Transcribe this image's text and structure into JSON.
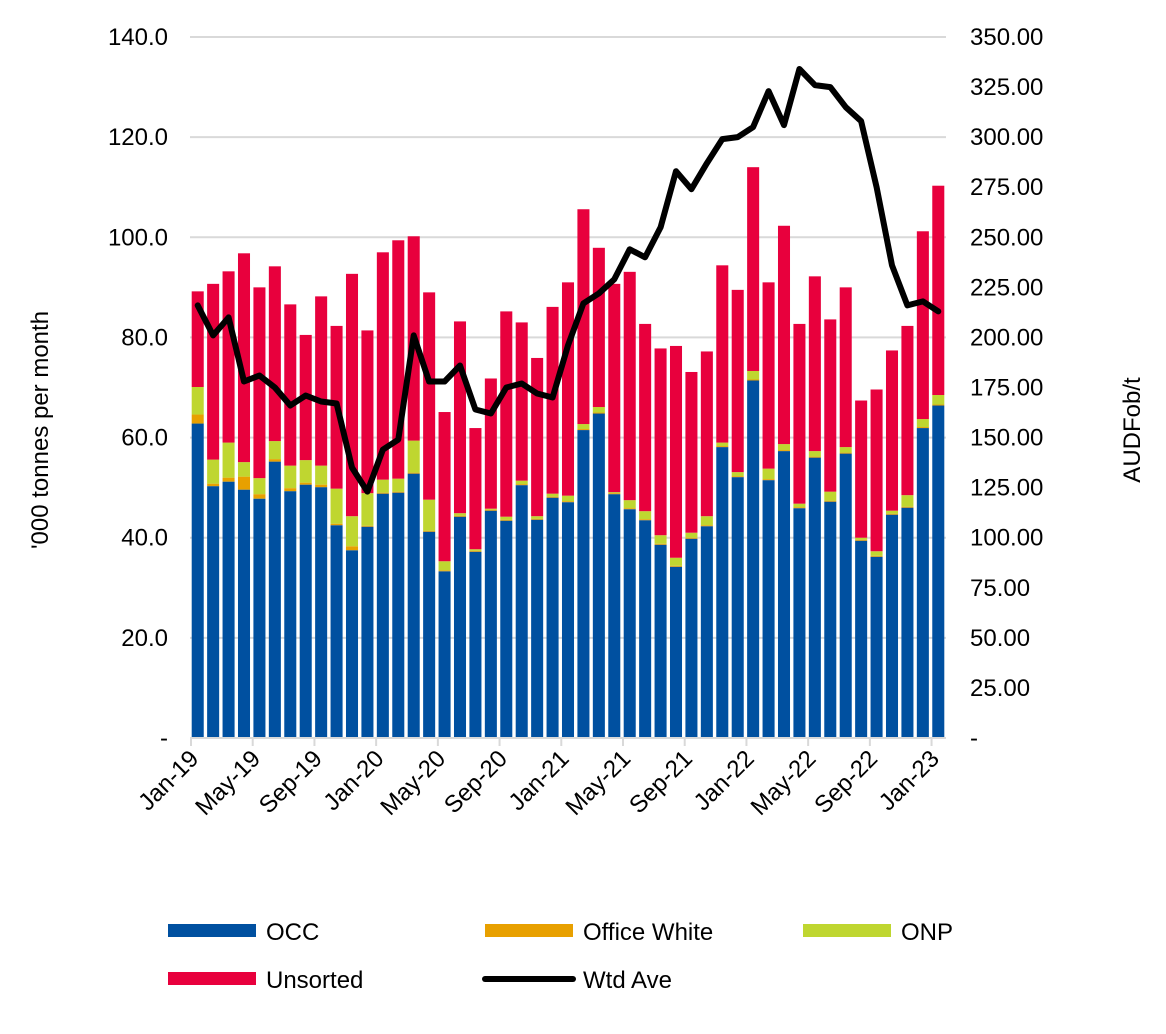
{
  "chart_data": {
    "type": "bar",
    "stacked": true,
    "categories": [
      "Jan-19",
      "Feb-19",
      "Mar-19",
      "Apr-19",
      "May-19",
      "Jun-19",
      "Jul-19",
      "Aug-19",
      "Sep-19",
      "Oct-19",
      "Nov-19",
      "Dec-19",
      "Jan-20",
      "Feb-20",
      "Mar-20",
      "Apr-20",
      "May-20",
      "Jun-20",
      "Jul-20",
      "Aug-20",
      "Sep-20",
      "Oct-20",
      "Nov-20",
      "Dec-20",
      "Jan-21",
      "Feb-21",
      "Mar-21",
      "Apr-21",
      "May-21",
      "Jun-21",
      "Jul-21",
      "Aug-21",
      "Sep-21",
      "Oct-21",
      "Nov-21",
      "Dec-21",
      "Jan-22",
      "Feb-22",
      "Mar-22",
      "Apr-22",
      "May-22",
      "Jun-22",
      "Jul-22",
      "Aug-22",
      "Sep-22",
      "Oct-22",
      "Nov-22",
      "Dec-22",
      "Jan-23"
    ],
    "x_tick_labels": [
      "Jan-19",
      "May-19",
      "Sep-19",
      "Jan-20",
      "May-20",
      "Sep-20",
      "Jan-21",
      "May-21",
      "Sep-21",
      "Jan-22",
      "May-22",
      "Sep-22",
      "Jan-23"
    ],
    "ylabel": "'000 tonnes per month",
    "y2label": "AUDFob/t",
    "ylim": [
      0,
      140
    ],
    "y2lim": [
      0,
      350
    ],
    "y_ticks": [
      "-",
      "20.0",
      "40.0",
      "60.0",
      "80.0",
      "100.0",
      "120.0",
      "140.0"
    ],
    "y2_ticks": [
      "-",
      "25.00",
      "50.00",
      "75.00",
      "100.00",
      "125.00",
      "150.00",
      "175.00",
      "200.00",
      "225.00",
      "250.00",
      "275.00",
      "300.00",
      "325.00",
      "350.00"
    ],
    "grid": "horizontal",
    "legend_position": "bottom",
    "series": [
      {
        "name": "OCC",
        "color": "#0050A0",
        "values": [
          62.8,
          50.3,
          51.2,
          49.6,
          47.8,
          55.2,
          49.3,
          50.6,
          50.1,
          42.5,
          37.5,
          42.2,
          48.8,
          49.0,
          52.8,
          41.2,
          33.3,
          44.2,
          37.2,
          45.4,
          43.4,
          50.5,
          43.6,
          48.0,
          47.1,
          61.5,
          64.8,
          48.7,
          45.7,
          43.5,
          38.6,
          34.2,
          39.8,
          42.3,
          58.1,
          52.1,
          71.4,
          51.5,
          57.3,
          45.9,
          56.0,
          47.2,
          56.8,
          39.4,
          36.2,
          44.6,
          46.0,
          61.9,
          66.4
        ]
      },
      {
        "name": "Office White",
        "color": "#E8A000",
        "values": [
          1.8,
          0.5,
          0.8,
          2.6,
          0.9,
          0.5,
          0.6,
          0.4,
          0.5,
          0.3,
          0.8,
          0.2,
          0.2,
          0.2,
          0.2,
          0.2,
          0.2,
          0.2,
          0.2,
          0.2,
          0.2,
          0.2,
          0.2,
          0.2,
          0.2,
          0.2,
          0.2,
          0.2,
          0.2,
          0.2,
          0.2,
          0.2,
          0.2,
          0.2,
          0.2,
          0.2,
          0.2,
          0.2,
          0.2,
          0.2,
          0.2,
          0.2,
          0.2,
          0.2,
          0.2,
          0.2,
          0.2,
          0.2,
          0.2
        ]
      },
      {
        "name": "ONP",
        "color": "#BFD630",
        "values": [
          5.5,
          4.8,
          7.0,
          2.9,
          3.2,
          3.6,
          4.5,
          4.5,
          3.8,
          7.0,
          6.0,
          6.5,
          2.6,
          2.6,
          6.4,
          6.2,
          1.8,
          0.5,
          0.3,
          0.2,
          0.6,
          0.7,
          0.5,
          0.6,
          1.1,
          1.0,
          1.1,
          0.2,
          1.6,
          1.6,
          1.7,
          1.6,
          1.0,
          1.8,
          0.7,
          0.8,
          1.7,
          2.1,
          1.2,
          0.7,
          1.1,
          1.8,
          1.1,
          0.4,
          0.9,
          0.6,
          2.3,
          1.6,
          1.9
        ]
      },
      {
        "name": "Unsorted",
        "color": "#E8003D",
        "values": [
          19.1,
          35.1,
          34.2,
          41.7,
          38.1,
          34.9,
          32.2,
          25.0,
          33.8,
          32.5,
          48.4,
          32.5,
          45.4,
          47.6,
          40.8,
          41.4,
          29.8,
          38.3,
          24.2,
          26.0,
          41.0,
          31.6,
          31.6,
          37.3,
          42.6,
          42.9,
          31.8,
          41.6,
          45.6,
          37.4,
          37.3,
          42.3,
          32.1,
          32.9,
          35.4,
          36.4,
          40.7,
          37.2,
          43.6,
          35.9,
          34.9,
          34.4,
          31.9,
          27.4,
          32.3,
          32.0,
          33.8,
          37.5,
          41.8
        ]
      }
    ],
    "line_series": {
      "name": "Wtd Ave",
      "color": "#000000",
      "axis": "right",
      "values": [
        216,
        201,
        210,
        178,
        181,
        175,
        166,
        171,
        168,
        167,
        135,
        123,
        144,
        149,
        201,
        178,
        178,
        186,
        164,
        162,
        175,
        177,
        172,
        170,
        196,
        217,
        222,
        229,
        244,
        240,
        255,
        283,
        274,
        287,
        299,
        300,
        305,
        323,
        306,
        334,
        326,
        325,
        315,
        308,
        275,
        236,
        216,
        218,
        213
      ]
    }
  }
}
